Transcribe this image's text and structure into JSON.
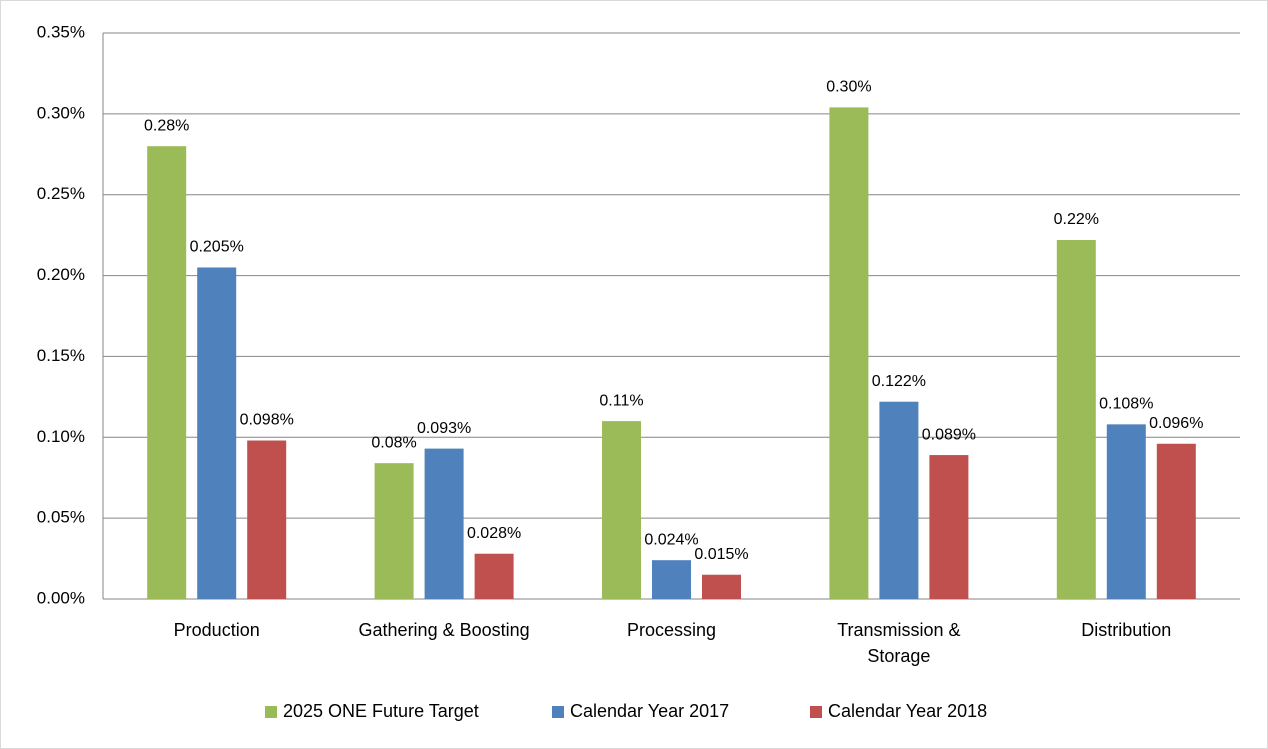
{
  "chart_data": {
    "type": "bar",
    "categories": [
      "Production",
      "Gathering & Boosting",
      "Processing",
      "Transmission & Storage",
      "Distribution"
    ],
    "series": [
      {
        "name": "2025 ONE Future Target",
        "color": "#9bbb59",
        "values": [
          0.28,
          0.084,
          0.11,
          0.304,
          0.222
        ],
        "value_labels": [
          "0.28%",
          "0.08%",
          "0.11%",
          "0.30%",
          "0.22%"
        ]
      },
      {
        "name": "Calendar Year 2017",
        "color": "#4f81bd",
        "values": [
          0.205,
          0.093,
          0.024,
          0.122,
          0.108
        ],
        "value_labels": [
          "0.205%",
          "0.093%",
          "0.024%",
          "0.122%",
          "0.108%"
        ]
      },
      {
        "name": "Calendar Year 2018",
        "color": "#c0504d",
        "values": [
          0.098,
          0.028,
          0.015,
          0.089,
          0.096
        ],
        "value_labels": [
          "0.098%",
          "0.028%",
          "0.015%",
          "0.089%",
          "0.096%"
        ]
      }
    ],
    "ylim": [
      0,
      0.35
    ],
    "yticks": [
      {
        "value": 0,
        "label": "0.00%"
      },
      {
        "value": 0.05,
        "label": "0.05%"
      },
      {
        "value": 0.1,
        "label": "0.10%"
      },
      {
        "value": 0.15,
        "label": "0.15%"
      },
      {
        "value": 0.2,
        "label": "0.20%"
      },
      {
        "value": 0.25,
        "label": "0.25%"
      },
      {
        "value": 0.3,
        "label": "0.30%"
      },
      {
        "value": 0.35,
        "label": "0.35%"
      }
    ],
    "grid": true,
    "legend": "bottom"
  }
}
